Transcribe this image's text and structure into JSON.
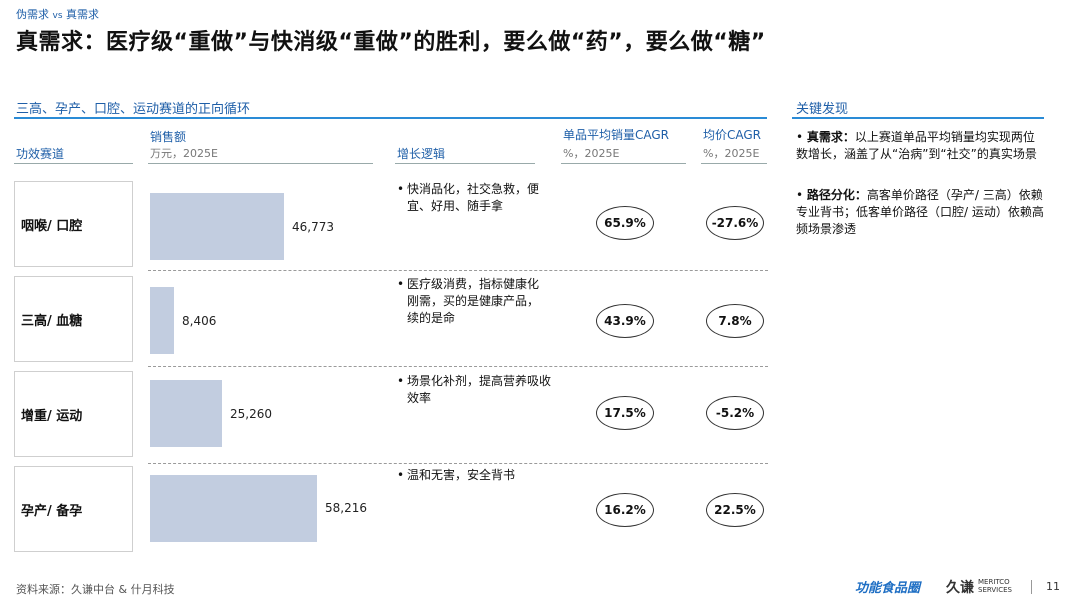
{
  "header": {
    "kicker_left": "伪需求",
    "kicker_vs": "vs",
    "kicker_right": "真需求",
    "title": "真需求：医疗级“重做”与快消级“重做”的胜利，要么做“药”，要么做“糖”"
  },
  "section": {
    "title": "三高、孕产、口腔、运动赛道的正向循环",
    "columns": {
      "track": "功效赛道",
      "sales": "销售额",
      "sales_unit": "万元，2025E",
      "logic": "增长逻辑",
      "cagr": "单品平均销量CAGR",
      "cagr_unit": "%，2025E",
      "price": "均价CAGR",
      "price_unit": "%，2025E"
    }
  },
  "chart_data": {
    "type": "bar",
    "orientation": "horizontal",
    "categories": [
      "咽喉/ 口腔",
      "三高/ 血糖",
      "增重/ 运动",
      "孕产/ 备孕"
    ],
    "values": [
      46773,
      8406,
      25260,
      58216
    ],
    "value_labels": [
      "46,773",
      "8,406",
      "25,260",
      "58,216"
    ],
    "ylabel": "销售额",
    "unit": "万元，2025E",
    "bar_color": "#c2cde0"
  },
  "rows": [
    {
      "logic": "快消品化，社交急救，便宜、好用、随手拿",
      "cagr": "65.9%",
      "price_cagr": "-27.6%"
    },
    {
      "logic": "医疗级消费，指标健康化刚需，买的是健康产品，续的是命",
      "cagr": "43.9%",
      "price_cagr": "7.8%"
    },
    {
      "logic": "场景化补剂，提高营养吸收效率",
      "cagr": "17.5%",
      "price_cagr": "-5.2%"
    },
    {
      "logic": "温和无害，安全背书",
      "cagr": "16.2%",
      "price_cagr": "22.5%"
    }
  ],
  "findings": {
    "title": "关键发现",
    "items": [
      {
        "bold": "真需求：",
        "text": "以上赛道单品平均销量均实现两位数增长，涵盖了从“治病”到“社交”的真实场景"
      },
      {
        "bold": "路径分化：",
        "text": "高客单价路径（孕产/ 三高）依赖专业背书；低客单价路径（口腔/ 运动）依赖高频场景渗透"
      }
    ]
  },
  "footer": {
    "source": "资料来源：久谦中台 & 什月科技",
    "logo_functional": "功能食品圈",
    "logo_jq": "久谦",
    "logo_meritco_1": "MERITCO",
    "logo_meritco_2": "SERVICES",
    "page": "11"
  },
  "colors": {
    "accent": "#1f5fa8",
    "rule": "#2a8bd6",
    "bar": "#c2cde0"
  }
}
